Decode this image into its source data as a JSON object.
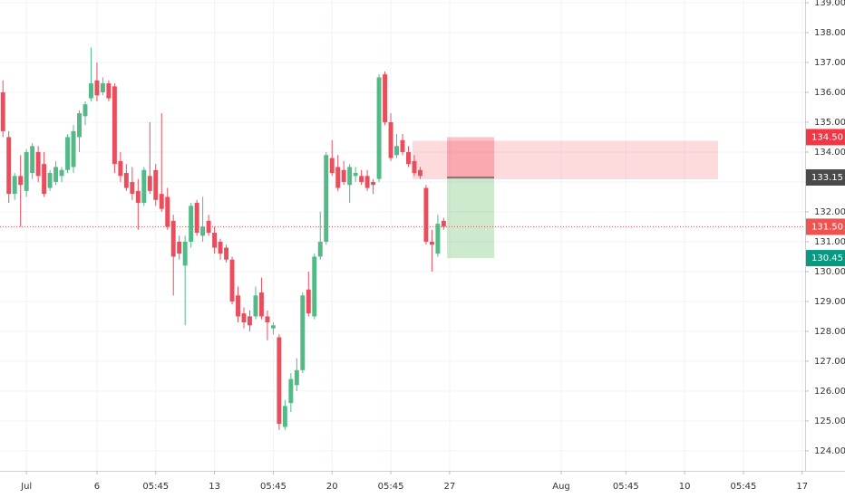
{
  "chart_data": {
    "type": "candlestick",
    "open": [
      136.0,
      134.5,
      132.6,
      133.2,
      132.7,
      133.3,
      134.0,
      133.6,
      132.8,
      133.0,
      133.2,
      133.4,
      133.5,
      134.5,
      135.2,
      135.8,
      136.4,
      136.0,
      136.3,
      136.2,
      133.7,
      133.3,
      133.0,
      132.7,
      132.3,
      133.2,
      133.4,
      132.6,
      132.5,
      131.7,
      131.0,
      130.2,
      131.0,
      132.3,
      131.2,
      131.7,
      131.3,
      131.0,
      130.8,
      130.4,
      129.2,
      128.6,
      128.5,
      128.5,
      129.3,
      128.5,
      128.1,
      127.8,
      124.8,
      125.6,
      126.2,
      126.7,
      129.4,
      128.5,
      130.5,
      131.0,
      133.8,
      133.5,
      133.4,
      132.9,
      133.2,
      133.2,
      133.2,
      133.0,
      133.1,
      136.6,
      135.0,
      133.9,
      134.4,
      134.0,
      133.7,
      133.4,
      132.8,
      131.0,
      130.6,
      131.7
    ],
    "high": [
      136.4,
      134.7,
      133.3,
      133.9,
      134.1,
      134.3,
      134.2,
      134.0,
      133.4,
      133.7,
      133.5,
      134.6,
      134.9,
      135.4,
      135.7,
      137.5,
      137.0,
      136.5,
      136.4,
      136.3,
      134.0,
      133.6,
      133.5,
      133.1,
      133.5,
      135.0,
      133.6,
      135.3,
      132.8,
      131.9,
      131.2,
      131.2,
      132.3,
      132.4,
      132.5,
      131.9,
      131.5,
      131.1,
      130.9,
      130.5,
      129.5,
      128.8,
      128.7,
      129.5,
      129.8,
      128.7,
      128.3,
      127.9,
      125.7,
      126.6,
      127.1,
      129.3,
      130.0,
      130.6,
      132.0,
      134.0,
      134.4,
      133.9,
      133.7,
      133.6,
      133.5,
      133.4,
      133.4,
      133.1,
      136.6,
      136.7,
      135.3,
      134.6,
      134.6,
      134.2,
      133.9,
      133.5,
      132.9,
      131.4,
      131.9,
      131.8
    ],
    "low": [
      134.5,
      132.3,
      132.4,
      131.5,
      132.5,
      133.1,
      133.0,
      132.5,
      132.7,
      132.9,
      133.0,
      133.3,
      133.3,
      134.0,
      134.9,
      135.7,
      135.7,
      135.9,
      135.7,
      133.3,
      133.0,
      132.7,
      132.4,
      131.4,
      132.2,
      132.6,
      132.2,
      132.0,
      131.4,
      129.2,
      130.4,
      128.2,
      130.8,
      131.2,
      131.0,
      131.2,
      130.6,
      130.4,
      130.3,
      128.9,
      128.3,
      128.1,
      128.0,
      128.4,
      128.4,
      127.7,
      127.9,
      124.7,
      124.7,
      125.3,
      126.0,
      126.6,
      128.5,
      128.4,
      130.4,
      130.9,
      133.2,
      132.7,
      132.9,
      132.3,
      133.0,
      132.9,
      132.7,
      132.6,
      133.0,
      134.9,
      133.7,
      133.8,
      133.9,
      133.5,
      133.2,
      133.1,
      130.9,
      130.0,
      130.5,
      131.4
    ],
    "close": [
      134.7,
      132.6,
      133.2,
      132.9,
      134.0,
      134.2,
      133.2,
      132.6,
      133.3,
      133.5,
      133.4,
      134.5,
      134.7,
      135.3,
      135.6,
      136.3,
      135.9,
      136.3,
      135.8,
      133.6,
      133.2,
      132.8,
      132.6,
      132.3,
      133.4,
      132.7,
      132.4,
      132.1,
      131.5,
      130.5,
      130.6,
      131.0,
      132.2,
      131.3,
      131.5,
      131.3,
      130.8,
      130.6,
      130.4,
      129.0,
      128.5,
      128.3,
      128.2,
      129.2,
      128.5,
      128.3,
      128.2,
      124.9,
      125.5,
      126.4,
      126.7,
      129.2,
      128.6,
      130.5,
      131.0,
      133.9,
      133.3,
      132.8,
      133.0,
      133.5,
      133.3,
      133.0,
      132.8,
      132.9,
      136.5,
      135.0,
      133.8,
      134.2,
      134.0,
      133.6,
      133.3,
      133.2,
      131.0,
      130.9,
      131.6,
      131.5
    ],
    "up_color": "#53b987",
    "down_color": "#eb4d5c",
    "ylim": [
      123.33,
      139.09
    ],
    "xlim": [
      -0.5,
      136.5
    ],
    "grid": true,
    "yticks": [
      {
        "value": 124,
        "label": "124.00"
      },
      {
        "value": 125,
        "label": "125.00"
      },
      {
        "value": 126,
        "label": "126.00"
      },
      {
        "value": 127,
        "label": "127.00"
      },
      {
        "value": 128,
        "label": "128.00"
      },
      {
        "value": 129,
        "label": "129.00"
      },
      {
        "value": 130,
        "label": "130.00"
      },
      {
        "value": 131,
        "label": "131.00"
      },
      {
        "value": 132,
        "label": "132.00"
      },
      {
        "value": 133,
        "label": "133.00"
      },
      {
        "value": 134,
        "label": "134.00"
      },
      {
        "value": 135,
        "label": "135.00"
      },
      {
        "value": 136,
        "label": "136.00"
      },
      {
        "value": 137,
        "label": "137.00"
      },
      {
        "value": 138,
        "label": "138.00"
      },
      {
        "value": 139,
        "label": "139.00"
      }
    ],
    "xticks": [
      {
        "value": 4,
        "label": "Jul"
      },
      {
        "value": 16,
        "label": "6"
      },
      {
        "value": 26,
        "label": "05:45"
      },
      {
        "value": 36,
        "label": "13"
      },
      {
        "value": 46,
        "label": "05:45"
      },
      {
        "value": 56,
        "label": "20"
      },
      {
        "value": 66,
        "label": "05:45"
      },
      {
        "value": 76,
        "label": "27"
      },
      {
        "value": 95,
        "label": "Aug"
      },
      {
        "value": 106,
        "label": "05:45"
      },
      {
        "value": 116,
        "label": "10"
      },
      {
        "value": 126,
        "label": "05:45"
      },
      {
        "value": 136,
        "label": "17"
      }
    ],
    "price_marks": [
      {
        "value": 134.5,
        "label": "134.50",
        "color": "#f23645"
      },
      {
        "value": 133.15,
        "label": "133.15",
        "color": "#4a4a4a"
      },
      {
        "value": 131.5,
        "label": "131.50",
        "color": "#ef5350"
      },
      {
        "value": 130.45,
        "label": "130.45",
        "color": "#089981"
      }
    ]
  }
}
